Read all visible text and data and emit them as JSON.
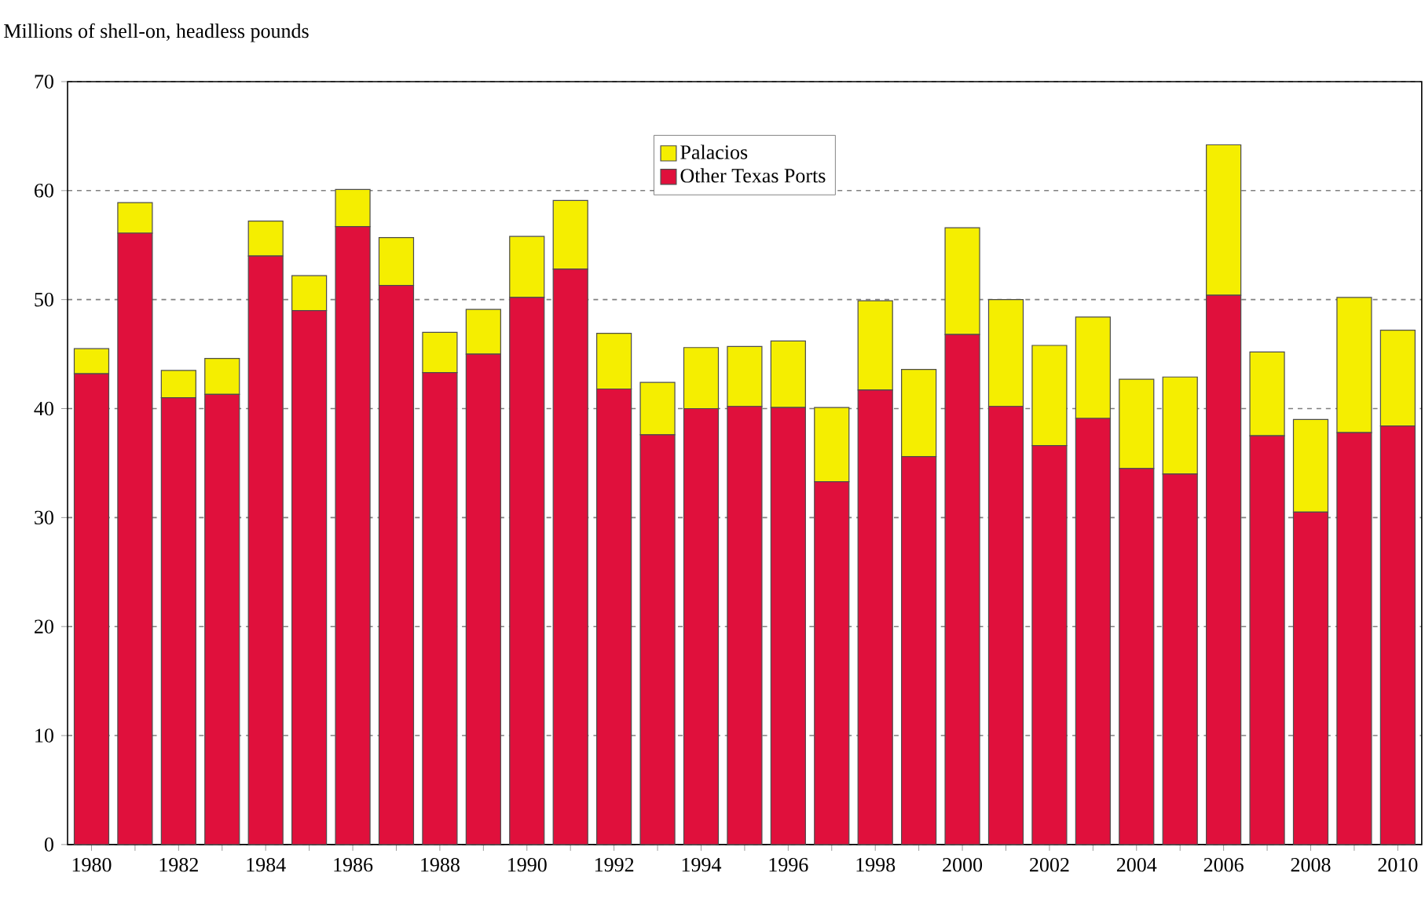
{
  "chart_data": {
    "type": "bar",
    "stacked": true,
    "ylabel": "Millions of shell-on, headless pounds",
    "categories": [
      "1980",
      null,
      "1982",
      null,
      "1984",
      null,
      "1986",
      null,
      "1988",
      null,
      "1990",
      null,
      "1992",
      null,
      "1994",
      null,
      "1996",
      null,
      "1998",
      null,
      "2000",
      null,
      "2002",
      null,
      "2004",
      null,
      "2006",
      null,
      "2008",
      null,
      "2010"
    ],
    "series": [
      {
        "name": "Other Texas Ports",
        "color": "#e0103c",
        "values": [
          43.2,
          56.1,
          41.0,
          41.3,
          54.0,
          49.0,
          56.7,
          51.3,
          43.3,
          45.0,
          50.2,
          52.8,
          41.8,
          37.6,
          40.0,
          40.2,
          40.1,
          33.3,
          41.7,
          35.6,
          46.8,
          40.2,
          36.6,
          39.1,
          34.5,
          34.0,
          50.4,
          37.5,
          30.5,
          37.8,
          38.4
        ]
      },
      {
        "name": "Palacios",
        "color": "#f5ee00",
        "values": [
          2.3,
          2.8,
          2.5,
          3.3,
          3.2,
          3.2,
          3.4,
          4.4,
          3.7,
          4.1,
          5.6,
          6.3,
          5.1,
          4.8,
          5.6,
          5.5,
          6.1,
          6.8,
          8.2,
          8.0,
          9.8,
          9.8,
          9.2,
          9.3,
          8.2,
          8.9,
          13.8,
          7.7,
          8.5,
          12.4,
          8.8
        ]
      }
    ],
    "ylim": [
      0,
      70
    ],
    "yticks": [
      0,
      10,
      20,
      30,
      40,
      50,
      60,
      70
    ],
    "grid": "y",
    "legend": "top"
  }
}
